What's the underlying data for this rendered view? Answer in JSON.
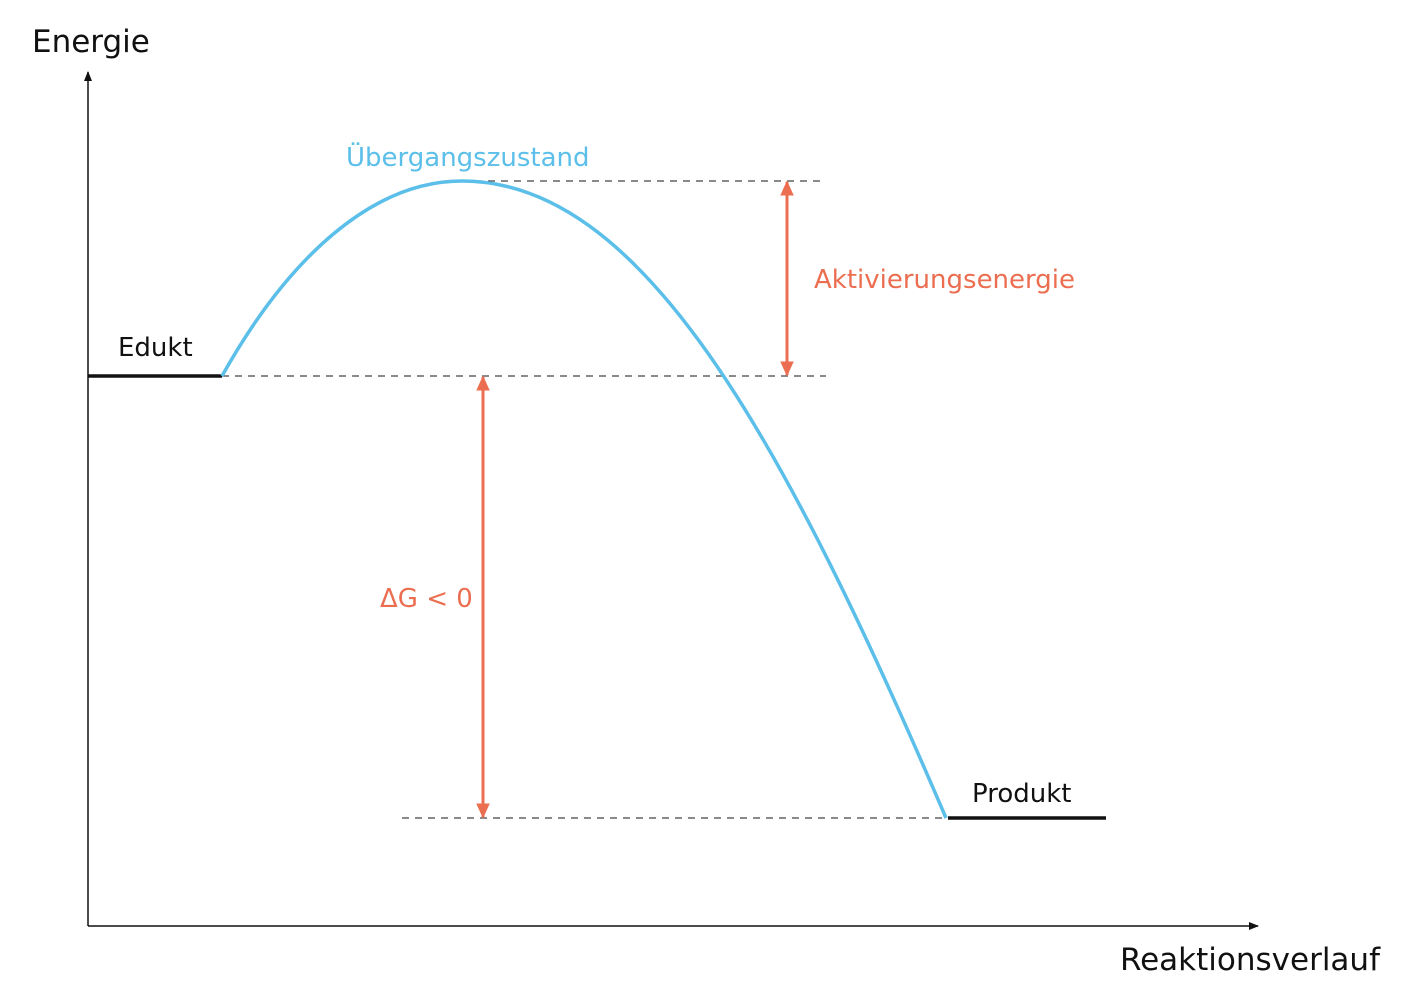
{
  "axes": {
    "y_label": "Energie",
    "x_label": "Reaktionsverlauf"
  },
  "labels": {
    "reactant": "Edukt",
    "product": "Produkt",
    "transition_state": "Übergangszustand",
    "activation_energy": "Aktivierungsenergie",
    "delta_g": "ΔG < 0"
  },
  "colors": {
    "curve": "#5bbfe9",
    "annotation": "#ec6e51",
    "axis": "#111111",
    "guide": "#444444"
  }
}
